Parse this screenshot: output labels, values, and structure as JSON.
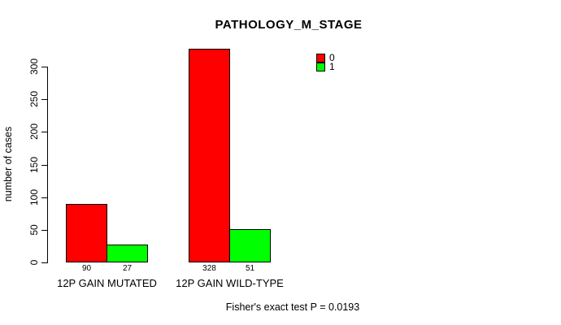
{
  "chart_data": {
    "type": "bar",
    "title": "PATHOLOGY_M_STAGE",
    "ylabel": "number of cases",
    "categories": [
      "12P GAIN MUTATED",
      "12P GAIN WILD-TYPE"
    ],
    "series": [
      {
        "name": "0",
        "color": "#FF0000",
        "values": [
          90,
          328
        ]
      },
      {
        "name": "1",
        "color": "#00FF00",
        "values": [
          27,
          51
        ]
      }
    ],
    "bar_value_labels": [
      [
        "90",
        "27"
      ],
      [
        "328",
        "51"
      ]
    ],
    "y_ticks": [
      0,
      50,
      100,
      150,
      200,
      250,
      300
    ],
    "ylim": [
      0,
      335
    ],
    "grid": "off",
    "legend_position": "top-right-inside",
    "footnote": "Fisher's exact test P = 0.0193"
  },
  "colors": {
    "axis": "#000000",
    "background": "#FFFFFF",
    "series0": "#FF0000",
    "series1": "#00FF00"
  }
}
